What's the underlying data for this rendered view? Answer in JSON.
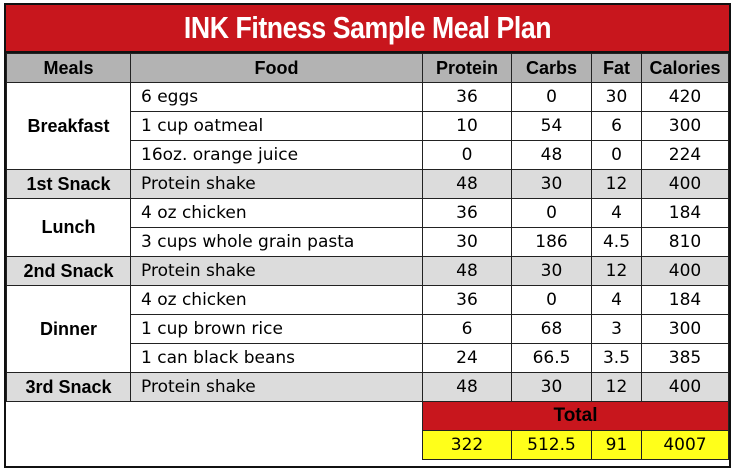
{
  "title": "INK Fitness Sample Meal Plan",
  "headers": [
    "Meals",
    "Food",
    "Protein",
    "Carbs",
    "Fat",
    "Calories"
  ],
  "rows": [
    {
      "meal": "Breakfast",
      "food": "6 eggs",
      "protein": "36",
      "carbs": "0",
      "fat": "30",
      "calories": "420"
    },
    {
      "food": "1 cup oatmeal",
      "protein": "10",
      "carbs": "54",
      "fat": "6",
      "calories": "300"
    },
    {
      "food": "16oz. orange juice",
      "protein": "0",
      "carbs": "48",
      "fat": "0",
      "calories": "224"
    },
    {
      "meal": "1st Snack",
      "food": "Protein shake",
      "protein": "48",
      "carbs": "30",
      "fat": "12",
      "calories": "400"
    },
    {
      "meal": "Lunch",
      "food": "4 oz chicken",
      "protein": "36",
      "carbs": "0",
      "fat": "4",
      "calories": "184"
    },
    {
      "food": "3 cups whole grain pasta",
      "protein": "30",
      "carbs": "186",
      "fat": "4.5",
      "calories": "810"
    },
    {
      "meal": "2nd Snack",
      "food": "Protein shake",
      "protein": "48",
      "carbs": "30",
      "fat": "12",
      "calories": "400"
    },
    {
      "meal": "Dinner",
      "food": "4 oz chicken",
      "protein": "36",
      "carbs": "0",
      "fat": "4",
      "calories": "184"
    },
    {
      "food": "1 cup brown rice",
      "protein": "6",
      "carbs": "68",
      "fat": "3",
      "calories": "300"
    },
    {
      "food": "1 can black beans",
      "protein": "24",
      "carbs": "66.5",
      "fat": "3.5",
      "calories": "385"
    },
    {
      "meal": "3rd Snack",
      "food": "Protein shake",
      "protein": "48",
      "carbs": "30",
      "fat": "12",
      "calories": "400"
    }
  ],
  "total": {
    "label": "Total",
    "protein": "322",
    "carbs": "512.5",
    "fat": "91",
    "calories": "4007"
  },
  "colors": {
    "title_bg": "#c8161d",
    "header_bg": "#b3b3b3",
    "snack_bg": "#dcdcdc",
    "total_bg": "#ffff1a"
  }
}
